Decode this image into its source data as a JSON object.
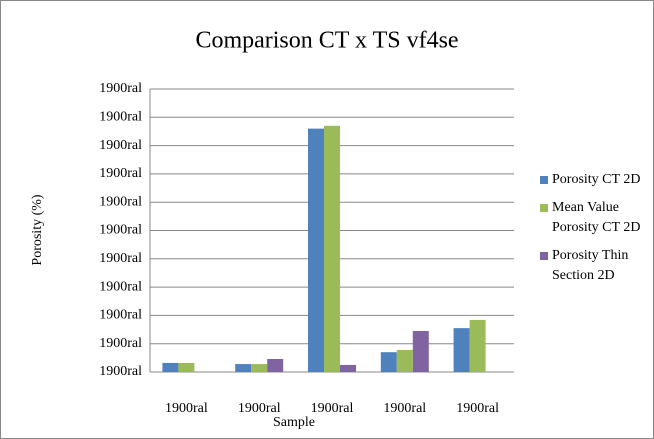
{
  "chart_data": {
    "type": "bar",
    "title": "Comparison CT x TS vf4se",
    "x_label": "Sample",
    "y_label": "Porosity (%)",
    "categories": [
      "1900ral",
      "1900ral",
      "1900ral",
      "1900ral",
      "1900ral"
    ],
    "series": [
      {
        "name": "Porosity CT 2D",
        "color": "#4f81bd",
        "values": [
          0.32,
          0.28,
          8.6,
          0.7,
          1.55
        ]
      },
      {
        "name": "Mean Value Porosity CT 2D",
        "color": "#9bbb59",
        "values": [
          0.32,
          0.28,
          8.7,
          0.78,
          1.84
        ]
      },
      {
        "name": "Porosity Thin Section 2D",
        "color": "#8064a2",
        "values": [
          null,
          0.46,
          0.25,
          1.45,
          null
        ]
      }
    ],
    "ylim": [
      0,
      10
    ],
    "yticks": [
      {
        "value": 0,
        "label": "1900ral"
      },
      {
        "value": 1,
        "label": "1900ral"
      },
      {
        "value": 2,
        "label": "1900ral"
      },
      {
        "value": 3,
        "label": "1900ral"
      },
      {
        "value": 4,
        "label": "1900ral"
      },
      {
        "value": 5,
        "label": "1900ral"
      },
      {
        "value": 6,
        "label": "1900ral"
      },
      {
        "value": 7,
        "label": "1900ral"
      },
      {
        "value": 8,
        "label": "1900ral"
      },
      {
        "value": 9,
        "label": "1900ral"
      },
      {
        "value": 10,
        "label": "1900ral"
      }
    ],
    "grid": true,
    "legend": "right"
  }
}
